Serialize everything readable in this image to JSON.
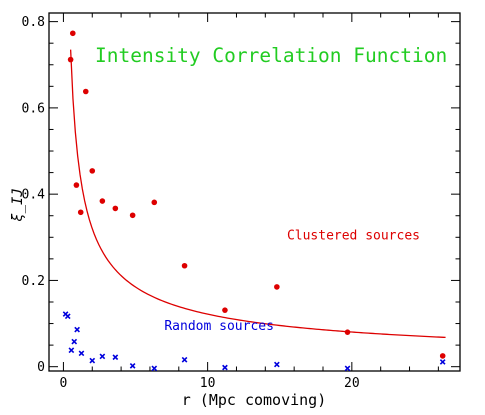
{
  "chart_data": {
    "type": "scatter",
    "title": "Intensity Correlation Function",
    "xlabel": "r (Mpc comoving)",
    "ylabel": "ξ_IJ",
    "xlim": [
      -1,
      27.5
    ],
    "ylim": [
      -0.01,
      0.82
    ],
    "x_ticks": [
      0,
      10,
      20
    ],
    "y_ticks": [
      0,
      0.2,
      0.4,
      0.6,
      0.8
    ],
    "x_tick_labels": [
      "0",
      "10",
      "20"
    ],
    "y_tick_labels": [
      "0",
      "0.2",
      "0.4",
      "0.6",
      "0.8"
    ],
    "colors": {
      "clustered": "#dd0000",
      "random": "#0000dd",
      "title": "#22cc22",
      "axes": "#000000"
    },
    "series": [
      {
        "name": "Clustered sources",
        "marker": "dot",
        "points": [
          {
            "x": 0.5,
            "y": 0.712
          },
          {
            "x": 0.65,
            "y": 0.773
          },
          {
            "x": 0.9,
            "y": 0.421
          },
          {
            "x": 1.2,
            "y": 0.358
          },
          {
            "x": 1.55,
            "y": 0.638
          },
          {
            "x": 2.0,
            "y": 0.454
          },
          {
            "x": 2.7,
            "y": 0.384
          },
          {
            "x": 3.6,
            "y": 0.367
          },
          {
            "x": 4.8,
            "y": 0.351
          },
          {
            "x": 6.3,
            "y": 0.381
          },
          {
            "x": 8.4,
            "y": 0.234
          },
          {
            "x": 11.2,
            "y": 0.131
          },
          {
            "x": 14.8,
            "y": 0.185
          },
          {
            "x": 19.7,
            "y": 0.08
          },
          {
            "x": 26.3,
            "y": 0.025
          }
        ]
      },
      {
        "name": "Random sources",
        "marker": "cross",
        "points": [
          {
            "x": 0.15,
            "y": 0.122
          },
          {
            "x": 0.3,
            "y": 0.117
          },
          {
            "x": 0.55,
            "y": 0.038
          },
          {
            "x": 0.75,
            "y": 0.058
          },
          {
            "x": 0.95,
            "y": 0.086
          },
          {
            "x": 1.25,
            "y": 0.031
          },
          {
            "x": 2.0,
            "y": 0.014
          },
          {
            "x": 2.7,
            "y": 0.024
          },
          {
            "x": 3.6,
            "y": 0.022
          },
          {
            "x": 4.8,
            "y": 0.002
          },
          {
            "x": 6.3,
            "y": -0.004
          },
          {
            "x": 8.4,
            "y": 0.016
          },
          {
            "x": 11.2,
            "y": -0.002
          },
          {
            "x": 14.8,
            "y": 0.005
          },
          {
            "x": 19.7,
            "y": -0.004
          },
          {
            "x": 26.3,
            "y": 0.011
          }
        ]
      }
    ],
    "fit_curve": {
      "series": "Clustered sources",
      "form": "power-law",
      "x_range": [
        0.5,
        26.5
      ],
      "amplitude": 0.485,
      "exponent": -0.6
    },
    "annotations": [
      {
        "text": "Clustered sources",
        "series": "Clustered sources",
        "x": 15.5,
        "y": 0.295
      },
      {
        "text": "Random sources",
        "series": "Random sources",
        "x": 7.0,
        "y": 0.085
      }
    ]
  }
}
